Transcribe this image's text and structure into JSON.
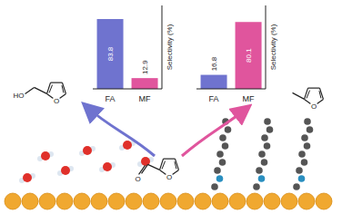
{
  "chart_data": [
    {
      "type": "bar",
      "categories": [
        "FA",
        "MF"
      ],
      "values": [
        83.8,
        12.9
      ],
      "colors": [
        "#6f73cf",
        "#e0559d"
      ],
      "ylim": [
        0,
        100
      ],
      "y_label": "Selectivity (%)",
      "data_labels": true,
      "tick_labels": "x"
    },
    {
      "type": "bar",
      "categories": [
        "FA",
        "MF"
      ],
      "values": [
        16.8,
        80.1
      ],
      "colors": [
        "#6f73cf",
        "#e0559d"
      ],
      "ylim": [
        0,
        100
      ],
      "y_label": "Selectivity (%)",
      "data_labels": true,
      "tick_labels": "x"
    }
  ],
  "molecules": {
    "furfuryl_alcohol": {
      "labels": [
        "HO",
        "O"
      ]
    },
    "furfural": {
      "labels": [
        "O",
        "O"
      ]
    },
    "methylfuran": {
      "labels": [
        "O"
      ]
    }
  }
}
